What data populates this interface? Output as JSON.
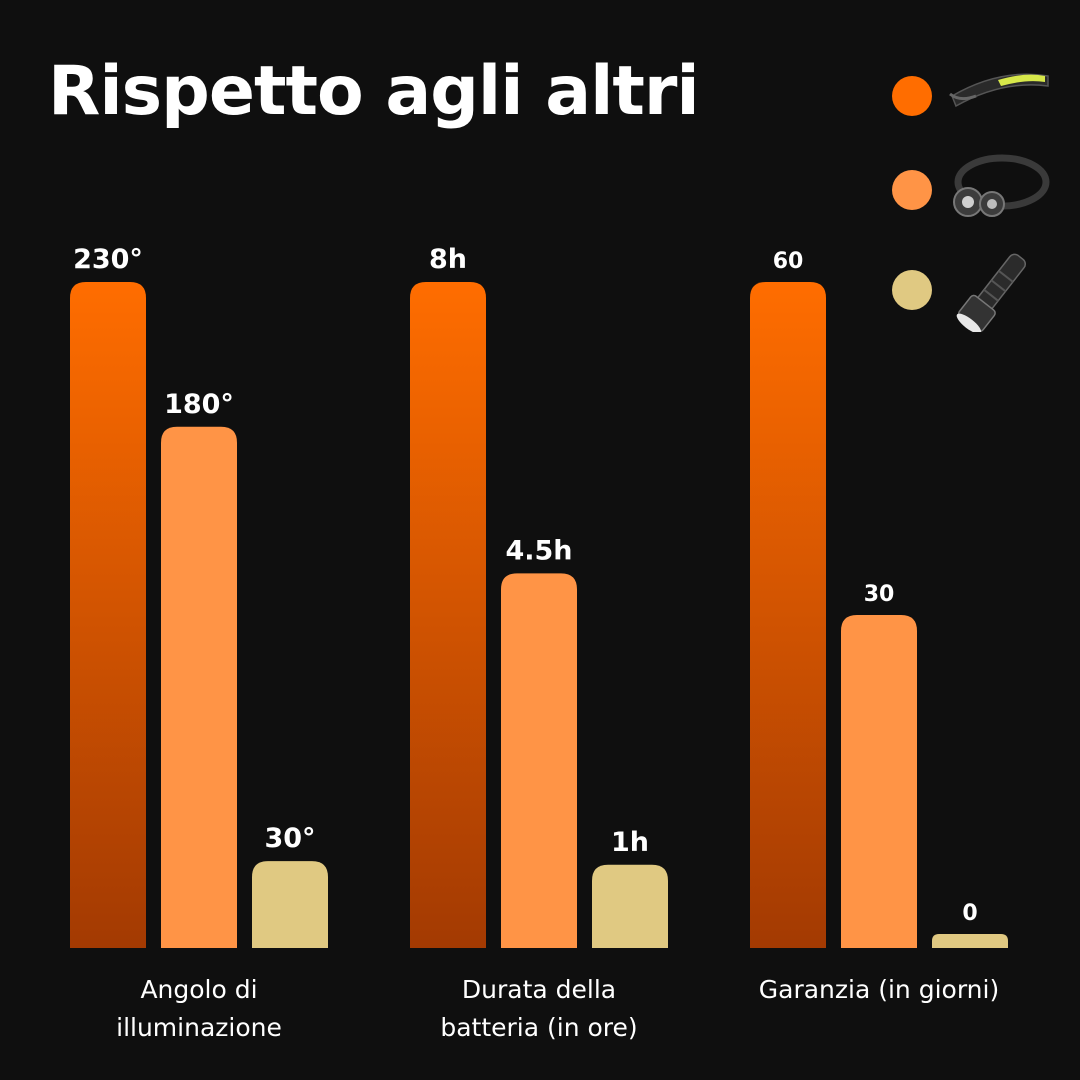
{
  "title": "Rispetto agli altri",
  "colors": {
    "background": "#0f0f0f",
    "series_1_top": "#ff6d00",
    "series_1_bottom": "#a33a02",
    "series_2": "#ff9446",
    "series_3": "#e0c982",
    "text": "#ffffff"
  },
  "legend": [
    {
      "color": "#ff6d00",
      "icon": "led-strip-headlamp-icon"
    },
    {
      "color": "#ff9446",
      "icon": "dual-lamp-headlamp-icon"
    },
    {
      "color": "#e0c982",
      "icon": "handheld-flashlight-icon"
    }
  ],
  "chart_data": {
    "type": "bar",
    "title": "Rispetto agli altri",
    "legend_position": "top-right",
    "grid": false,
    "groups": [
      {
        "category": [
          "Angolo di",
          "illuminazione"
        ],
        "values": [
          230,
          180,
          30
        ],
        "labels": [
          "230°",
          "180°",
          "30°"
        ],
        "ymax": 230
      },
      {
        "category": [
          "Durata della",
          "batteria (in ore)"
        ],
        "values": [
          8,
          4.5,
          1
        ],
        "labels": [
          "8h",
          "4.5h",
          "1h"
        ],
        "ymax": 8
      },
      {
        "category": [
          "Garanzia (in giorni)"
        ],
        "values": [
          60,
          30,
          0
        ],
        "labels": [
          "60",
          "30",
          "0"
        ],
        "ymax": 60
      }
    ]
  }
}
